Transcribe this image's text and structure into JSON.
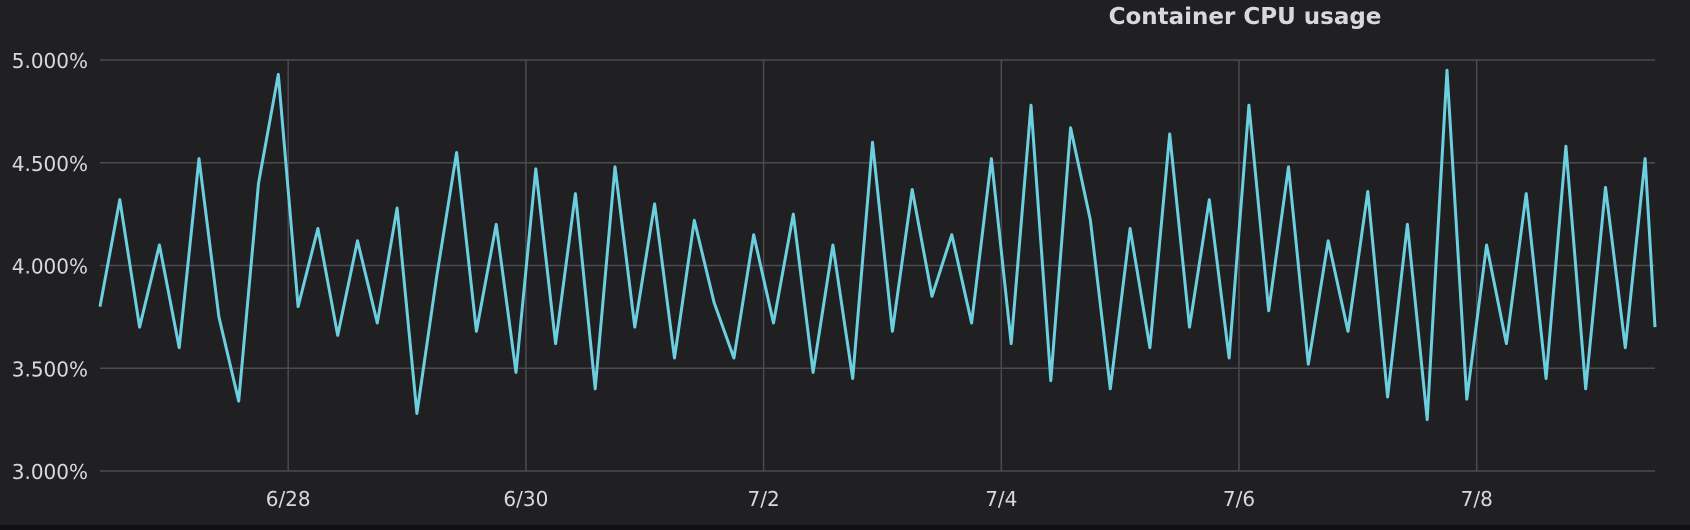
{
  "panel": {
    "title": "Container CPU usage"
  },
  "colors": {
    "background": "#202023",
    "grid": "#4a4b4f",
    "series": "#6ccfe0",
    "text": "#d8d9da"
  },
  "chart_data": {
    "type": "line",
    "title": "Container CPU usage",
    "xlabel": "",
    "ylabel": "",
    "ylim": [
      3.0,
      5.0
    ],
    "yticks": [
      "3.000%",
      "3.500%",
      "4.000%",
      "4.500%",
      "5.000%"
    ],
    "xlim": [
      "2023-06-26T10:00",
      "2023-07-09T12:00"
    ],
    "xticks": [
      "6/28",
      "6/30",
      "7/2",
      "7/4",
      "7/6",
      "7/8"
    ],
    "grid": true,
    "legend": "none",
    "series": [
      {
        "x": [
          "2023-06-26T10:00",
          "2023-06-26T14:00",
          "2023-06-26T18:00",
          "2023-06-26T22:00",
          "2023-06-27T02:00",
          "2023-06-27T06:00",
          "2023-06-27T10:00",
          "2023-06-27T14:00",
          "2023-06-27T18:00",
          "2023-06-27T22:00",
          "2023-06-28T02:00",
          "2023-06-28T06:00",
          "2023-06-28T10:00",
          "2023-06-28T14:00",
          "2023-06-28T18:00",
          "2023-06-28T22:00",
          "2023-06-29T02:00",
          "2023-06-29T06:00",
          "2023-06-29T10:00",
          "2023-06-29T14:00",
          "2023-06-29T18:00",
          "2023-06-29T22:00",
          "2023-06-30T02:00",
          "2023-06-30T06:00",
          "2023-06-30T10:00",
          "2023-06-30T14:00",
          "2023-06-30T18:00",
          "2023-06-30T22:00",
          "2023-07-01T02:00",
          "2023-07-01T06:00",
          "2023-07-01T10:00",
          "2023-07-01T14:00",
          "2023-07-01T18:00",
          "2023-07-01T22:00",
          "2023-07-02T02:00",
          "2023-07-02T06:00",
          "2023-07-02T10:00",
          "2023-07-02T14:00",
          "2023-07-02T18:00",
          "2023-07-02T22:00",
          "2023-07-03T02:00",
          "2023-07-03T06:00",
          "2023-07-03T10:00",
          "2023-07-03T14:00",
          "2023-07-03T18:00",
          "2023-07-03T22:00",
          "2023-07-04T02:00",
          "2023-07-04T06:00",
          "2023-07-04T10:00",
          "2023-07-04T14:00",
          "2023-07-04T18:00",
          "2023-07-04T22:00",
          "2023-07-05T02:00",
          "2023-07-05T06:00",
          "2023-07-05T10:00",
          "2023-07-05T14:00",
          "2023-07-05T18:00",
          "2023-07-05T22:00",
          "2023-07-06T02:00",
          "2023-07-06T06:00",
          "2023-07-06T10:00",
          "2023-07-06T14:00",
          "2023-07-06T18:00",
          "2023-07-06T22:00",
          "2023-07-07T02:00",
          "2023-07-07T06:00",
          "2023-07-07T10:00",
          "2023-07-07T14:00",
          "2023-07-07T18:00",
          "2023-07-07T22:00",
          "2023-07-08T02:00",
          "2023-07-08T06:00",
          "2023-07-08T10:00",
          "2023-07-08T14:00",
          "2023-07-08T18:00",
          "2023-07-08T22:00",
          "2023-07-09T02:00",
          "2023-07-09T06:00",
          "2023-07-09T10:00",
          "2023-07-09T12:00"
        ],
        "values": [
          3.8,
          4.32,
          3.7,
          4.1,
          3.6,
          4.52,
          3.75,
          3.34,
          4.4,
          4.93,
          3.8,
          4.18,
          3.66,
          4.12,
          3.72,
          4.28,
          3.28,
          3.95,
          4.55,
          3.68,
          4.2,
          3.48,
          4.47,
          3.62,
          4.35,
          3.4,
          4.48,
          3.7,
          4.3,
          3.55,
          4.22,
          3.82,
          3.55,
          4.15,
          3.72,
          4.25,
          3.48,
          4.1,
          3.45,
          4.6,
          3.68,
          4.37,
          3.85,
          4.15,
          3.72,
          4.52,
          3.62,
          4.78,
          3.44,
          4.67,
          4.22,
          3.4,
          4.18,
          3.6,
          4.64,
          3.7,
          4.32,
          3.55,
          4.78,
          3.78,
          4.48,
          3.52,
          4.12,
          3.68,
          4.36,
          3.36,
          4.2,
          3.25,
          4.95,
          3.35,
          4.1,
          3.62,
          4.35,
          3.45,
          4.58,
          3.4,
          4.38,
          3.6,
          4.52,
          3.7
        ]
      }
    ]
  }
}
